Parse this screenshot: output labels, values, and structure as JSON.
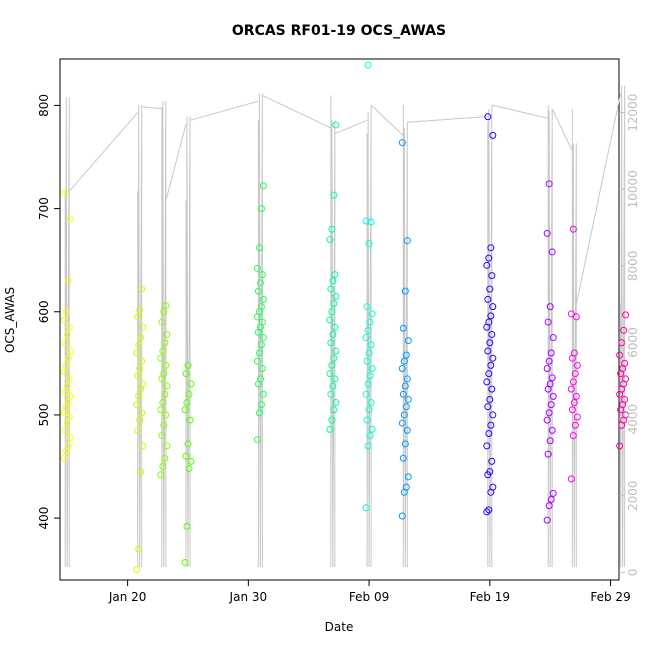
{
  "chart_data": {
    "type": "scatter",
    "title": "ORCAS RF01-19 OCS_AWAS",
    "xlabel": "Date",
    "ylabel": "OCS_AWAS",
    "x_tick_labels": [
      "Jan 20",
      "Jan 30",
      "Feb 09",
      "Feb 19",
      "Feb 29"
    ],
    "y_ticks": [
      400,
      500,
      600,
      700,
      800
    ],
    "y_right_ticks": [
      0,
      2000,
      4000,
      6000,
      8000,
      10000,
      12000
    ],
    "ylim": [
      340,
      845
    ],
    "y_right_lim": [
      -200,
      13400
    ],
    "xlim_days_from_jan1": [
      14.4,
      60.7
    ],
    "secondary_series_note": "",
    "flights": [
      {
        "date": "Jan 15",
        "color": "#ffff00",
        "values": [
          458,
          465,
          470,
          478,
          485,
          492,
          498,
          502,
          508,
          512,
          518,
          522,
          528,
          535,
          542,
          548,
          555,
          562,
          570,
          578,
          585,
          592,
          600,
          630,
          690,
          715
        ]
      },
      {
        "date": "Jan 21",
        "color": "#ccff00",
        "values": [
          350,
          370,
          445,
          470,
          485,
          495,
          502,
          510,
          518,
          525,
          530,
          538,
          545,
          552,
          560,
          568,
          575,
          585,
          595,
          602,
          622
        ]
      },
      {
        "date": "Jan 23",
        "color": "#88ff00",
        "values": [
          442,
          450,
          458,
          470,
          480,
          490,
          500,
          505,
          512,
          520,
          528,
          535,
          540,
          548,
          555,
          562,
          570,
          578,
          590,
          600,
          606
        ]
      },
      {
        "date": "Jan 25",
        "color": "#55ff00",
        "values": [
          357,
          392,
          448,
          455,
          460,
          472,
          495,
          505,
          512,
          520,
          530,
          540,
          548
        ]
      },
      {
        "date": "Jan 31",
        "color": "#22ff55",
        "values": [
          476,
          502,
          510,
          520,
          530,
          535,
          545,
          552,
          560,
          568,
          575,
          580,
          585,
          590,
          595,
          600,
          605,
          612,
          620,
          628,
          636,
          642,
          662,
          700,
          722
        ]
      },
      {
        "date": "Feb 06",
        "color": "#00ff99",
        "values": [
          486,
          495,
          505,
          512,
          520,
          528,
          535,
          540,
          548,
          555,
          562,
          570,
          578,
          585,
          592,
          600,
          608,
          615,
          622,
          630,
          636,
          670,
          680,
          713,
          781
        ]
      },
      {
        "date": "Feb 09",
        "color": "#00ffdd",
        "values": [
          410,
          470,
          480,
          486,
          495,
          505,
          512,
          520,
          530,
          538,
          545,
          552,
          560,
          568,
          575,
          582,
          590,
          598,
          605,
          666,
          687,
          688,
          839
        ]
      },
      {
        "date": "Feb 12",
        "color": "#0099ff",
        "values": [
          402,
          425,
          430,
          440,
          458,
          472,
          485,
          492,
          500,
          508,
          515,
          520,
          528,
          535,
          545,
          552,
          558,
          572,
          584,
          620,
          669,
          764
        ]
      },
      {
        "date": "Feb 19",
        "color": "#3300ff",
        "values": [
          406,
          408,
          425,
          430,
          442,
          445,
          455,
          470,
          482,
          490,
          500,
          508,
          515,
          525,
          532,
          540,
          548,
          555,
          562,
          570,
          578,
          585,
          590,
          596,
          605,
          612,
          622,
          635,
          645,
          652,
          662,
          771,
          789
        ]
      },
      {
        "date": "Feb 24",
        "color": "#aa00ff",
        "values": [
          398,
          412,
          418,
          424,
          462,
          475,
          485,
          495,
          502,
          510,
          518,
          525,
          530,
          536,
          545,
          552,
          560,
          575,
          590,
          605,
          658,
          676,
          724
        ]
      },
      {
        "date": "Feb 26",
        "color": "#ff00ee",
        "values": [
          438,
          480,
          490,
          498,
          505,
          512,
          518,
          525,
          532,
          540,
          548,
          555,
          560,
          595,
          598,
          680
        ]
      },
      {
        "date": "Mar 01",
        "color": "#ff00aa",
        "values": [
          470,
          490,
          495,
          500,
          505,
          510,
          515,
          520,
          525,
          530,
          535,
          540,
          545,
          550,
          558,
          570,
          582,
          597
        ]
      }
    ]
  }
}
